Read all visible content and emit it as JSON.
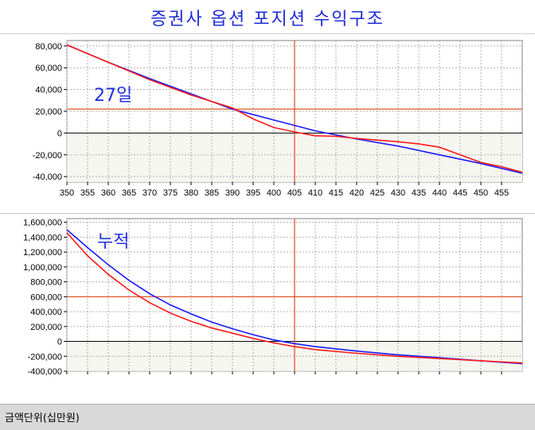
{
  "chart_title": "증권사 옵션 포지션 수익구조",
  "footer_label": "금액단위(십만원)",
  "colors": {
    "blue": "#1a1aff",
    "red": "#ff1a1a",
    "marker": "#e0582a",
    "zero": "#000000",
    "grid": "#b0b0b0",
    "title": "#1f2bd6"
  },
  "chart_data": [
    {
      "type": "line",
      "annotation": "27일",
      "xlim": [
        350,
        460
      ],
      "ylim": [
        -45000,
        85000
      ],
      "x_ticks": [
        350,
        355,
        360,
        365,
        370,
        375,
        380,
        385,
        390,
        395,
        400,
        405,
        410,
        415,
        420,
        425,
        430,
        435,
        440,
        445,
        450,
        455
      ],
      "y_ticks": [
        -40000,
        -20000,
        0,
        20000,
        40000,
        60000,
        80000
      ],
      "y_tick_labels": [
        "-40,000",
        "-20,000",
        "0",
        "20,000",
        "40,000",
        "60,000",
        "80,000"
      ],
      "ref_x": 405,
      "ref_y": 22000,
      "series": [
        {
          "color": "blue",
          "x": [
            350,
            360,
            370,
            380,
            390,
            400,
            410,
            420,
            430,
            440,
            450,
            460
          ],
          "y": [
            81000,
            65000,
            50000,
            36000,
            22000,
            12000,
            2000,
            -5500,
            -12000,
            -20000,
            -28000,
            -37000
          ]
        },
        {
          "color": "red",
          "x": [
            350,
            360,
            370,
            380,
            385,
            390,
            395,
            400,
            405,
            410,
            415,
            420,
            425,
            430,
            435,
            440,
            445,
            450,
            455,
            460
          ],
          "y": [
            81000,
            65000,
            49000,
            35000,
            29000,
            23000,
            13000,
            5000,
            1000,
            -2500,
            -3000,
            -5000,
            -6500,
            -8000,
            -10000,
            -13000,
            -20000,
            -27000,
            -31000,
            -36000
          ]
        }
      ]
    },
    {
      "type": "line",
      "annotation": "누적",
      "xlim": [
        350,
        460
      ],
      "ylim": [
        -400000,
        1650000
      ],
      "x_ticks": [
        350,
        355,
        360,
        365,
        370,
        375,
        380,
        385,
        390,
        395,
        400,
        405,
        410,
        415,
        420,
        425,
        430,
        435,
        440,
        445,
        450,
        455
      ],
      "y_ticks": [
        -400000,
        -200000,
        0,
        200000,
        400000,
        600000,
        800000,
        1000000,
        1200000,
        1400000,
        1600000
      ],
      "y_tick_labels": [
        "-400,000",
        "-200,000",
        "0",
        "200,000",
        "400,000",
        "600,000",
        "800,000",
        "1,000,000",
        "1,200,000",
        "1,400,000",
        "1,600,000"
      ],
      "ref_x": 405,
      "ref_y": 600000,
      "series": [
        {
          "color": "blue",
          "x": [
            350,
            355,
            360,
            365,
            370,
            375,
            380,
            385,
            390,
            395,
            400,
            405,
            410,
            420,
            430,
            440,
            450,
            460
          ],
          "y": [
            1500000,
            1260000,
            1030000,
            820000,
            640000,
            490000,
            370000,
            260000,
            170000,
            90000,
            20000,
            -30000,
            -70000,
            -130000,
            -180000,
            -220000,
            -260000,
            -300000
          ]
        },
        {
          "color": "red",
          "x": [
            350,
            355,
            360,
            365,
            370,
            375,
            380,
            385,
            390,
            395,
            400,
            405,
            410,
            420,
            430,
            440,
            450,
            460
          ],
          "y": [
            1460000,
            1150000,
            900000,
            690000,
            520000,
            380000,
            270000,
            180000,
            110000,
            40000,
            -20000,
            -70000,
            -110000,
            -160000,
            -200000,
            -230000,
            -260000,
            -290000
          ]
        }
      ]
    }
  ]
}
